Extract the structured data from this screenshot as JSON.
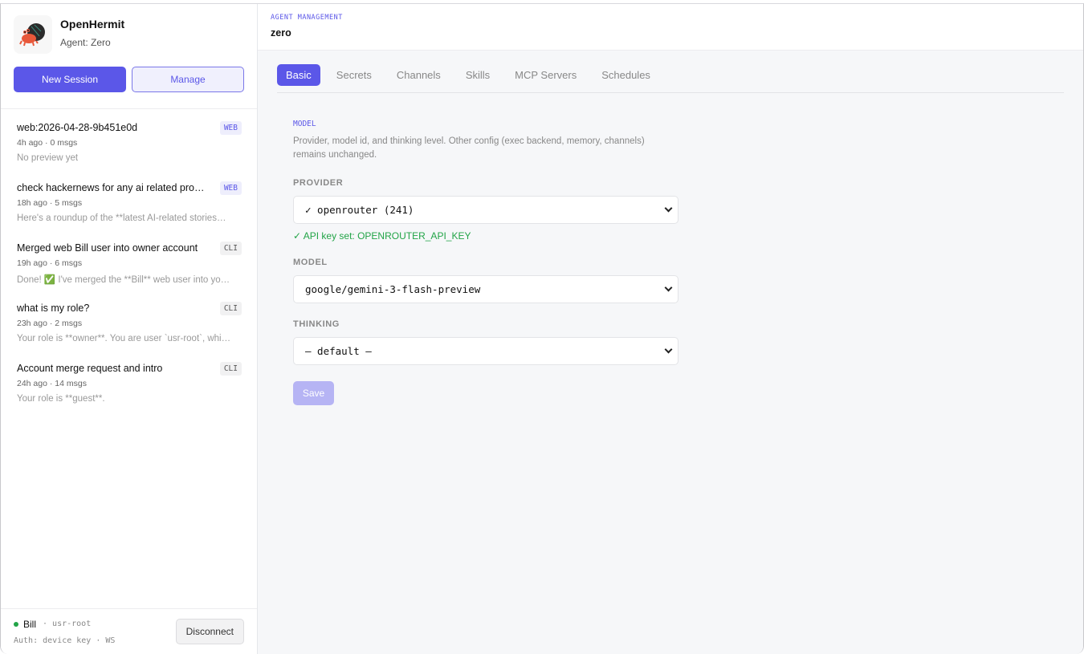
{
  "sidebar": {
    "brand": {
      "name": "OpenHermit",
      "agent": "Agent: Zero"
    },
    "new_session": "New Session",
    "manage": "Manage",
    "sessions": [
      {
        "title": "web:2026-04-28-9b451e0d",
        "meta": "4h ago · 0 msgs",
        "preview": "No preview yet",
        "badge": "WEB"
      },
      {
        "title": "check hackernews for any ai related pro…",
        "meta": "18h ago · 5 msgs",
        "preview": "Here's a roundup of the **latest AI-related stories…",
        "badge": "WEB"
      },
      {
        "title": "Merged web Bill user into owner account",
        "meta": "19h ago · 6 msgs",
        "preview": "Done! ✅ I've merged the **Bill** web user into yo…",
        "badge": "CLI"
      },
      {
        "title": "what is my role?",
        "meta": "23h ago · 2 msgs",
        "preview": "Your role is **owner**. You are user `usr-root`, whi…",
        "badge": "CLI"
      },
      {
        "title": "Account merge request and intro",
        "meta": "24h ago · 14 msgs",
        "preview": "Your role is **guest**.",
        "badge": "CLI"
      }
    ],
    "footer": {
      "user": "Bill",
      "user_id": "· usr-root",
      "auth": "Auth: device key · WS",
      "disconnect": "Disconnect",
      "status_color": "#22a447"
    }
  },
  "main": {
    "eyebrow": "AGENT MANAGEMENT",
    "title": "zero",
    "tabs": [
      {
        "label": "Basic",
        "active": true
      },
      {
        "label": "Secrets"
      },
      {
        "label": "Channels"
      },
      {
        "label": "Skills"
      },
      {
        "label": "MCP Servers"
      },
      {
        "label": "Schedules"
      }
    ],
    "section": {
      "title": "MODEL",
      "description": "Provider, model id, and thinking level. Other config (exec backend, memory, channels) remains unchanged."
    },
    "provider": {
      "label": "PROVIDER",
      "value": "✓ openrouter (241)",
      "status": "✓ API key set: OPENROUTER_API_KEY"
    },
    "model": {
      "label": "MODEL",
      "value": "google/gemini-3-flash-preview"
    },
    "thinking": {
      "label": "THINKING",
      "value": "— default —"
    },
    "save": "Save"
  },
  "colors": {
    "accent": "#5b57e8",
    "success": "#22a447"
  }
}
